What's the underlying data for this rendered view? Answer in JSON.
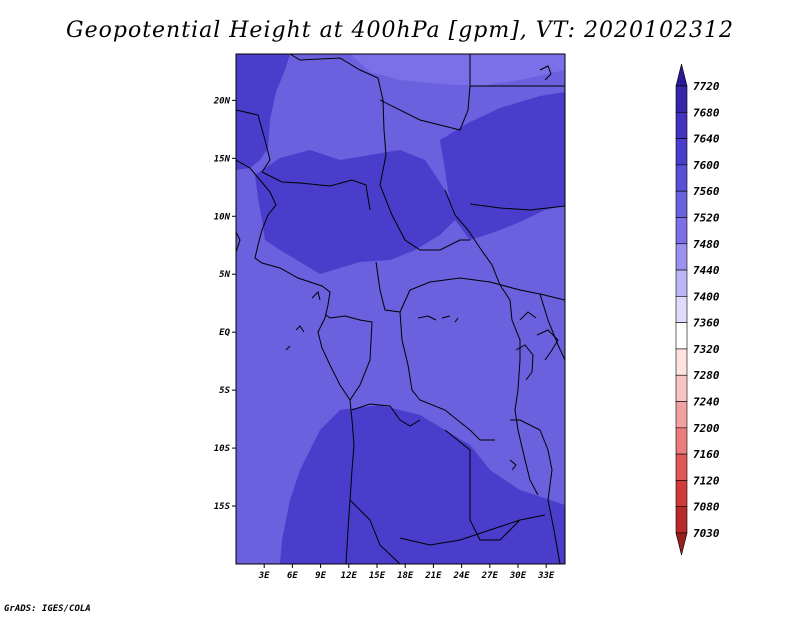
{
  "title": "Geopotential Height at 400hPa [gpm], VT: 2020102312",
  "credit": "GrADS: IGES/COLA",
  "map": {
    "lat_labels": [
      "20N",
      "15N",
      "10N",
      "5N",
      "EQ",
      "5S",
      "10S",
      "15S"
    ],
    "lon_labels": [
      "3E",
      "6E",
      "9E",
      "12E",
      "15E",
      "18E",
      "21E",
      "24E",
      "27E",
      "30E",
      "33E"
    ],
    "lon_range": [
      0,
      35
    ],
    "lat_range": [
      -20,
      24
    ]
  },
  "colorbar": {
    "levels": [
      "7720",
      "7680",
      "7640",
      "7600",
      "7560",
      "7520",
      "7480",
      "7440",
      "7400",
      "7360",
      "7320",
      "7280",
      "7240",
      "7200",
      "7160",
      "7120",
      "7080",
      "7030"
    ],
    "colors": [
      "#2a1a9a",
      "#3826aa",
      "#4232c0",
      "#4a3dcc",
      "#5a4fd6",
      "#6b60de",
      "#7b70e8",
      "#9a92f0",
      "#bcb6f6",
      "#dedcfa",
      "#ffffff",
      "#fde2e2",
      "#f8c3c3",
      "#f2a0a0",
      "#ea7c7c",
      "#e05858",
      "#d03a3a",
      "#b82a2a",
      "#9a1e1e"
    ]
  },
  "field_colors": {
    "base": "#6b60de",
    "high": "#4a3dcc",
    "highest": "#7b70e8"
  }
}
